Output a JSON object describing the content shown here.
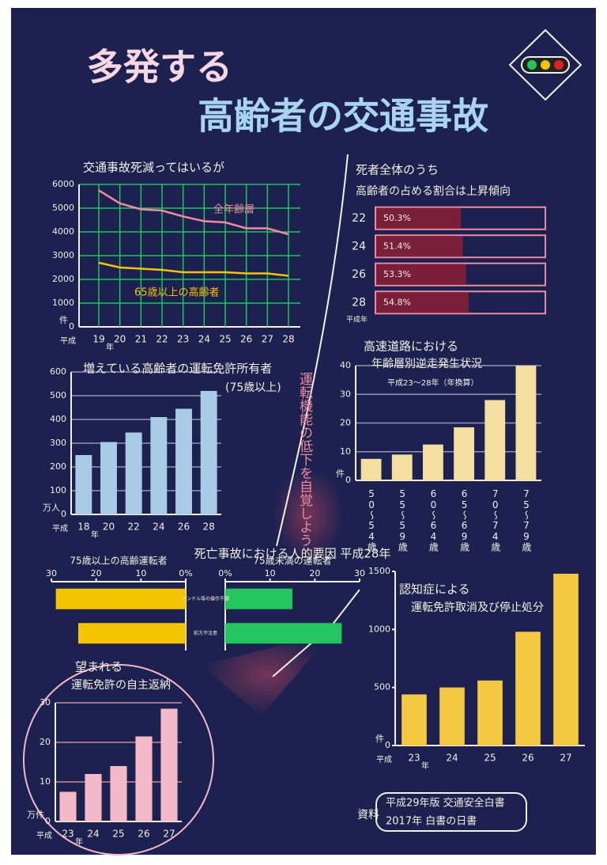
{
  "poster": {
    "title": "多発する",
    "subtitle": "高齢者の交通事故",
    "slogan": "運転機能の低下を自覚しよう",
    "source_label": "資料",
    "sources": [
      "平成29年版 交通安全白書",
      "2017年 白書の日書"
    ]
  },
  "chart_data": [
    {
      "type": "line",
      "title": "交通事故死減ってはいるが",
      "x_prefix": "平成",
      "x_suffix": "年",
      "y_unit": "件",
      "categories": [
        "19",
        "20",
        "21",
        "22",
        "23",
        "24",
        "25",
        "26",
        "27",
        "28"
      ],
      "series": [
        {
          "name": "全年齢層",
          "color": "#f08aa0",
          "values": [
            5750,
            5200,
            4950,
            4900,
            4650,
            4450,
            4400,
            4150,
            4150,
            3900
          ]
        },
        {
          "name": "65歳以上の高齢者",
          "color": "#f5c400",
          "values": [
            2700,
            2500,
            2450,
            2400,
            2300,
            2300,
            2300,
            2250,
            2250,
            2150
          ]
        }
      ],
      "ylim": [
        0,
        6000
      ],
      "yticks": [
        0,
        1000,
        2000,
        3000,
        4000,
        5000,
        6000
      ],
      "grid": true,
      "grid_color": "#22c55e"
    },
    {
      "type": "hbar",
      "title": "死者全体のうち",
      "subtitle": "高齢者の占める割合は上昇傾向",
      "categories": [
        "22",
        "24",
        "26",
        "28"
      ],
      "category_unit": "平成年",
      "values": [
        50.3,
        51.4,
        53.3,
        54.8
      ],
      "value_labels": [
        "50.3%",
        "51.4%",
        "53.3%",
        "54.8%"
      ],
      "xlim": [
        0,
        100
      ],
      "color": "#7a1f3a",
      "outline": "#f08aa0"
    },
    {
      "type": "bar",
      "title": "増えている高齢者の運転免許所有者",
      "subtitle": "(75歳以上)",
      "x_prefix": "平成",
      "x_suffix": "年",
      "y_unit": "万人",
      "categories": [
        "18",
        "20",
        "22",
        "24",
        "26",
        "28"
      ],
      "values": [
        250,
        305,
        345,
        410,
        445,
        520
      ],
      "ylim": [
        0,
        600
      ],
      "yticks": [
        0,
        100,
        200,
        300,
        400,
        500,
        600
      ],
      "color": "#a8cce8",
      "grid": true,
      "grid_color": "#8f95b8"
    },
    {
      "type": "bar",
      "title": "高速道路における",
      "subtitle": "年齢層別逆走発生状況",
      "note": "平成23～28年（年換算）",
      "y_unit": "件",
      "categories": [
        "50～54歳",
        "55～59歳",
        "60～64歳",
        "65～69歳",
        "70～74歳",
        "75～79歳"
      ],
      "values": [
        7.5,
        9,
        12.5,
        18.5,
        28,
        40
      ],
      "ylim": [
        0,
        40
      ],
      "yticks": [
        0,
        10,
        20,
        30,
        40
      ],
      "color": "#f5dfa0",
      "grid": true,
      "grid_color": "#8f95b8"
    },
    {
      "type": "butterfly",
      "title": "死亡事故における人的要因 平成28年",
      "categories": [
        "ハンドル等の操作不適",
        "前方不注意"
      ],
      "series": [
        {
          "name": "75歳以上の高齢運転者",
          "color": "#f5c400",
          "values": [
            29,
            24
          ]
        },
        {
          "name": "75歳未満の運転者",
          "color": "#22c55e",
          "values": [
            15,
            26
          ]
        }
      ],
      "xlim": [
        0,
        30
      ],
      "xticks": [
        {
          "value": 0,
          "label": "0%"
        },
        10,
        20,
        30
      ]
    },
    {
      "type": "bar",
      "title": "認知症による",
      "subtitle": "運転免許取消及び停止処分",
      "x_prefix": "平成",
      "x_suffix": "年",
      "y_unit": "件",
      "categories": [
        "23",
        "24",
        "25",
        "26",
        "27"
      ],
      "values": [
        440,
        500,
        560,
        980,
        1480
      ],
      "ylim": [
        0,
        1500
      ],
      "yticks": [
        0,
        500,
        1000,
        1500
      ],
      "color": "#f5c842",
      "grid": false
    },
    {
      "type": "bar",
      "title": "望まれる",
      "subtitle": "運転免許の自主返納",
      "x_prefix": "平成",
      "x_suffix": "年",
      "y_unit": "万件",
      "categories": [
        "23",
        "24",
        "25",
        "26",
        "27"
      ],
      "values": [
        7.5,
        12,
        14,
        21.5,
        28.5
      ],
      "ylim": [
        0,
        30
      ],
      "yticks": [
        0,
        10,
        20,
        30
      ],
      "color": "#f4b8c8",
      "grid": true,
      "grid_color": "#c98aa0"
    }
  ]
}
